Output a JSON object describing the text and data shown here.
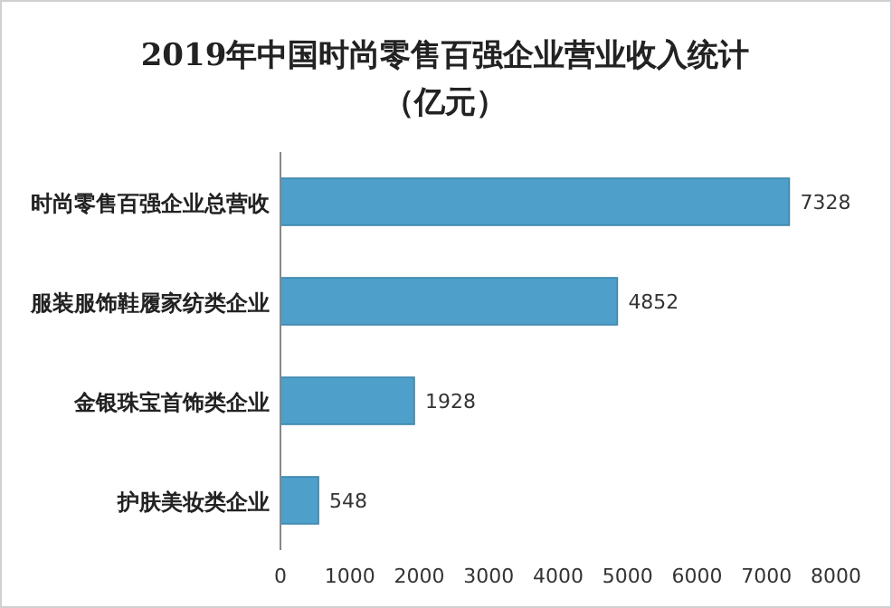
{
  "chart_data": {
    "type": "bar",
    "orientation": "horizontal",
    "title": "2019年中国时尚零售百强企业营业收入统计（亿元）",
    "categories": [
      "时尚零售百强企业总营收",
      "服装服饰鞋履家纺类企业",
      "金银珠宝首饰类企业",
      "护肤美妆类企业"
    ],
    "values": [
      7328,
      4852,
      1928,
      548
    ],
    "color": "#4e9fc9",
    "xlim": [
      0,
      8000
    ],
    "xticks": [
      0,
      1000,
      2000,
      3000,
      4000,
      5000,
      6000,
      7000,
      8000
    ],
    "data_labels": true,
    "grid": false
  }
}
